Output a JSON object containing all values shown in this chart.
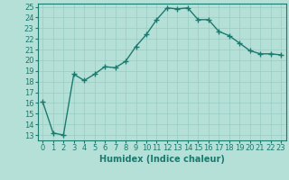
{
  "x": [
    0,
    1,
    2,
    3,
    4,
    5,
    6,
    7,
    8,
    9,
    10,
    11,
    12,
    13,
    14,
    15,
    16,
    17,
    18,
    19,
    20,
    21,
    22,
    23
  ],
  "y": [
    16.1,
    13.2,
    13.0,
    18.7,
    18.1,
    18.7,
    19.4,
    19.3,
    19.9,
    21.3,
    22.4,
    23.8,
    24.9,
    24.8,
    24.9,
    23.8,
    23.8,
    22.7,
    22.3,
    21.6,
    20.9,
    20.6,
    20.6,
    20.5
  ],
  "line_color": "#1a7a6e",
  "marker": "+",
  "marker_size": 4,
  "bg_color": "#b5e0d8",
  "grid_color": "#99ccc4",
  "xlabel": "Humidex (Indice chaleur)",
  "xlim": [
    -0.5,
    23.5
  ],
  "ylim": [
    12.5,
    25.3
  ],
  "yticks": [
    13,
    14,
    15,
    16,
    17,
    18,
    19,
    20,
    21,
    22,
    23,
    24,
    25
  ],
  "xticks": [
    0,
    1,
    2,
    3,
    4,
    5,
    6,
    7,
    8,
    9,
    10,
    11,
    12,
    13,
    14,
    15,
    16,
    17,
    18,
    19,
    20,
    21,
    22,
    23
  ],
  "xlabel_fontsize": 7,
  "tick_fontsize": 6,
  "line_width": 1.0
}
